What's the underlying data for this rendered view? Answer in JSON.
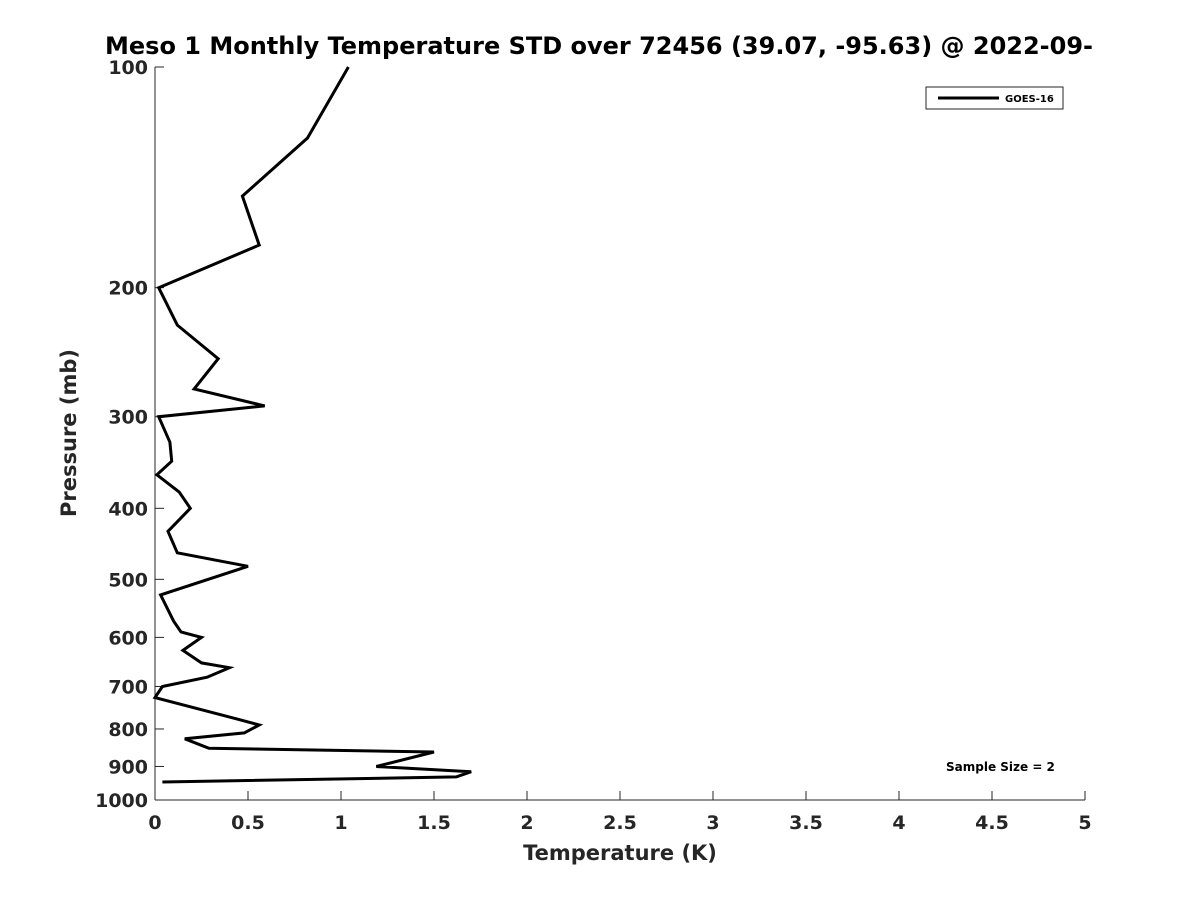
{
  "chart_data": {
    "type": "line",
    "title": "Meso 1 Monthly Temperature STD over 72456 (39.07, -95.63) @ 2022-09-",
    "xlabel": "Temperature (K)",
    "ylabel": "Pressure (mb)",
    "xlim": [
      0,
      5
    ],
    "ylim": [
      100,
      1000
    ],
    "y_scale": "log",
    "y_reversed": true,
    "grid": false,
    "x_ticks": [
      "0",
      "0.5",
      "1",
      "1.5",
      "2",
      "2.5",
      "3",
      "3.5",
      "4",
      "4.5",
      "5"
    ],
    "y_ticks": [
      "100",
      "200",
      "300",
      "400",
      "500",
      "600",
      "700",
      "800",
      "900",
      "1000"
    ],
    "legend": {
      "position": "top-right",
      "entries": [
        "GOES-16"
      ]
    },
    "annotations": [
      "Sample Size = 2"
    ],
    "line_color": "#000000",
    "series": [
      {
        "name": "GOES-16",
        "points": [
          [
            1.04,
            100
          ],
          [
            0.82,
            125
          ],
          [
            0.47,
            150
          ],
          [
            0.56,
            175
          ],
          [
            0.02,
            200
          ],
          [
            0.12,
            225
          ],
          [
            0.34,
            250
          ],
          [
            0.21,
            275
          ],
          [
            0.59,
            290
          ],
          [
            0.02,
            300
          ],
          [
            0.08,
            325
          ],
          [
            0.09,
            345
          ],
          [
            0.01,
            360
          ],
          [
            0.13,
            380
          ],
          [
            0.19,
            400
          ],
          [
            0.07,
            430
          ],
          [
            0.12,
            460
          ],
          [
            0.5,
            480
          ],
          [
            0.03,
            525
          ],
          [
            0.1,
            570
          ],
          [
            0.14,
            590
          ],
          [
            0.25,
            600
          ],
          [
            0.15,
            625
          ],
          [
            0.25,
            650
          ],
          [
            0.4,
            660
          ],
          [
            0.28,
            680
          ],
          [
            0.04,
            700
          ],
          [
            0.0,
            725
          ],
          [
            0.44,
            775
          ],
          [
            0.56,
            790
          ],
          [
            0.48,
            810
          ],
          [
            0.16,
            825
          ],
          [
            0.29,
            850
          ],
          [
            1.5,
            860
          ],
          [
            1.19,
            900
          ],
          [
            1.7,
            915
          ],
          [
            1.62,
            930
          ],
          [
            0.04,
            945
          ]
        ]
      }
    ]
  }
}
